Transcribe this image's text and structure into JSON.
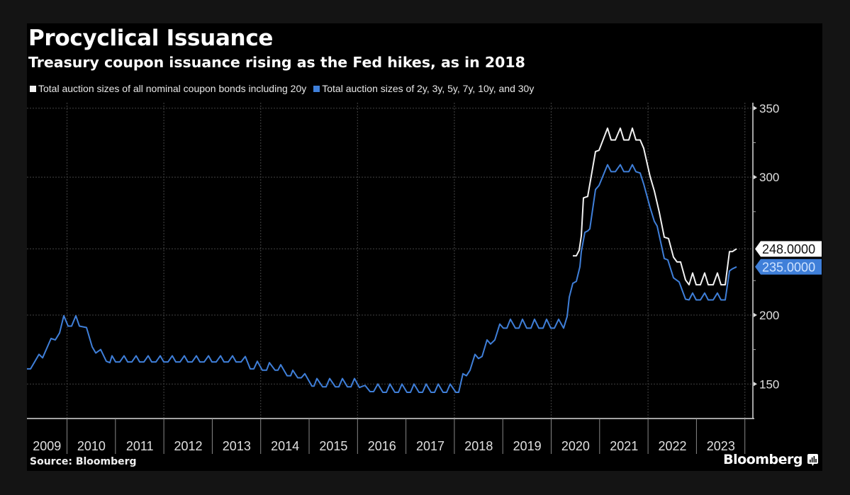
{
  "header": {
    "title": "Procyclical Issuance",
    "subtitle": "Treasury coupon issuance rising as the Fed hikes, as in 2018"
  },
  "footer": {
    "source": "Source: Bloomberg",
    "brand": "Bloomberg"
  },
  "icons": {
    "brand_logo": "bar-chart-speech-bubble-icon"
  },
  "colors": {
    "background": "#000000",
    "white_series": "#f2f2f2",
    "blue_series": "#3f7fd9",
    "grid": "#3a3a3a",
    "axis": "#d8d8d8"
  },
  "chart_data": {
    "type": "line",
    "title": "Procyclical Issuance",
    "subtitle": "Treasury coupon issuance rising as the Fed hikes, as in 2018",
    "xlabel": "",
    "ylabel": "",
    "xlim": [
      2009.165,
      2024.158
    ],
    "ylim": [
      125,
      354
    ],
    "y_axis_position": "right",
    "yticks": [
      150,
      200,
      300,
      350
    ],
    "yticks_minor": [
      175,
      225,
      275,
      325
    ],
    "ygrid_values": [
      150,
      200,
      248,
      300,
      350
    ],
    "x_tick_labels": [
      "2009",
      "2010",
      "2011",
      "2012",
      "2013",
      "2014",
      "2015",
      "2016",
      "2017",
      "2018",
      "2019",
      "2020",
      "2021",
      "2022",
      "2023"
    ],
    "x_dividers": [
      2010,
      2011,
      2012,
      2013,
      2014,
      2015,
      2016,
      2017,
      2018,
      2019,
      2020,
      2021,
      2022,
      2023,
      2024
    ],
    "xgrid_values": [
      2010,
      2012,
      2014,
      2016,
      2018,
      2020,
      2022,
      2024
    ],
    "grid": true,
    "legend_position": "top-left",
    "series": [
      {
        "name": "Total auction sizes of all nominal coupon bonds including 20y",
        "color": "#f2f2f2",
        "last_value_label": "248.0000",
        "points": [
          [
            2020.439,
            243
          ],
          [
            2020.512,
            243
          ],
          [
            2020.571,
            247
          ],
          [
            2020.615,
            257.5
          ],
          [
            2020.659,
            285
          ],
          [
            2020.747,
            286
          ],
          [
            2020.908,
            318.5
          ],
          [
            2020.981,
            319.5
          ],
          [
            2021.157,
            335.5
          ],
          [
            2021.23,
            327
          ],
          [
            2021.318,
            327
          ],
          [
            2021.42,
            335.5
          ],
          [
            2021.493,
            327
          ],
          [
            2021.596,
            327
          ],
          [
            2021.669,
            335.5
          ],
          [
            2021.742,
            327
          ],
          [
            2021.83,
            327
          ],
          [
            2021.903,
            321
          ],
          [
            2022.035,
            300.5
          ],
          [
            2022.123,
            290
          ],
          [
            2022.225,
            274.5
          ],
          [
            2022.328,
            256.5
          ],
          [
            2022.416,
            255.5
          ],
          [
            2022.518,
            242
          ],
          [
            2022.591,
            238.5
          ],
          [
            2022.665,
            238.5
          ],
          [
            2022.767,
            225.5
          ],
          [
            2022.84,
            222
          ],
          [
            2022.914,
            230.5
          ],
          [
            2022.987,
            222
          ],
          [
            2023.075,
            222
          ],
          [
            2023.163,
            230.5
          ],
          [
            2023.236,
            222
          ],
          [
            2023.338,
            222
          ],
          [
            2023.426,
            230.5
          ],
          [
            2023.499,
            222
          ],
          [
            2023.587,
            222
          ],
          [
            2023.675,
            246
          ],
          [
            2023.733,
            246
          ],
          [
            2023.821,
            248
          ]
        ]
      },
      {
        "name": "Total auction sizes of 2y, 3y, 5y, 7y, 10y, and 30y",
        "color": "#3f7fd9",
        "last_value_label": "235.0000",
        "points": [
          [
            2009.165,
            161
          ],
          [
            2009.239,
            161
          ],
          [
            2009.414,
            171.5
          ],
          [
            2009.488,
            169
          ],
          [
            2009.663,
            183
          ],
          [
            2009.751,
            182
          ],
          [
            2009.839,
            187
          ],
          [
            2009.927,
            199.5
          ],
          [
            2010.015,
            192
          ],
          [
            2010.088,
            192
          ],
          [
            2010.176,
            199.5
          ],
          [
            2010.249,
            192
          ],
          [
            2010.395,
            191
          ],
          [
            2010.512,
            177
          ],
          [
            2010.586,
            172.5
          ],
          [
            2010.688,
            175
          ],
          [
            2010.805,
            166.5
          ],
          [
            2010.878,
            165.5
          ],
          [
            2010.922,
            170.5
          ],
          [
            2010.996,
            166
          ],
          [
            2011.083,
            166
          ],
          [
            2011.171,
            170.5
          ],
          [
            2011.245,
            166
          ],
          [
            2011.332,
            166
          ],
          [
            2011.42,
            170.5
          ],
          [
            2011.493,
            166
          ],
          [
            2011.581,
            166
          ],
          [
            2011.669,
            170.5
          ],
          [
            2011.742,
            166
          ],
          [
            2011.83,
            166
          ],
          [
            2011.918,
            170.5
          ],
          [
            2011.991,
            166
          ],
          [
            2012.079,
            166
          ],
          [
            2012.167,
            170.5
          ],
          [
            2012.24,
            166
          ],
          [
            2012.328,
            166
          ],
          [
            2012.416,
            170.5
          ],
          [
            2012.489,
            166
          ],
          [
            2012.577,
            166
          ],
          [
            2012.665,
            170.5
          ],
          [
            2012.738,
            166
          ],
          [
            2012.826,
            166
          ],
          [
            2012.914,
            170.5
          ],
          [
            2012.987,
            166
          ],
          [
            2013.075,
            166
          ],
          [
            2013.163,
            170.5
          ],
          [
            2013.236,
            166
          ],
          [
            2013.324,
            166
          ],
          [
            2013.411,
            170.5
          ],
          [
            2013.485,
            166
          ],
          [
            2013.587,
            166
          ],
          [
            2013.675,
            170
          ],
          [
            2013.777,
            161
          ],
          [
            2013.851,
            161
          ],
          [
            2013.924,
            166.5
          ],
          [
            2014.026,
            160
          ],
          [
            2014.114,
            160
          ],
          [
            2014.173,
            165.5
          ],
          [
            2014.29,
            160
          ],
          [
            2014.348,
            160
          ],
          [
            2014.407,
            164
          ],
          [
            2014.539,
            156
          ],
          [
            2014.612,
            156
          ],
          [
            2014.656,
            160
          ],
          [
            2014.758,
            154.5
          ],
          [
            2014.832,
            154.5
          ],
          [
            2014.905,
            157.5
          ],
          [
            2015.051,
            148.5
          ],
          [
            2015.095,
            148.5
          ],
          [
            2015.154,
            154
          ],
          [
            2015.271,
            148
          ],
          [
            2015.344,
            148
          ],
          [
            2015.417,
            154
          ],
          [
            2015.534,
            148
          ],
          [
            2015.608,
            148
          ],
          [
            2015.681,
            154
          ],
          [
            2015.783,
            148
          ],
          [
            2015.857,
            148
          ],
          [
            2015.93,
            154
          ],
          [
            2016.032,
            147.5
          ],
          [
            2016.105,
            148.5
          ],
          [
            2016.149,
            149
          ],
          [
            2016.252,
            144.5
          ],
          [
            2016.325,
            144.5
          ],
          [
            2016.413,
            150
          ],
          [
            2016.515,
            144
          ],
          [
            2016.589,
            144
          ],
          [
            2016.662,
            150
          ],
          [
            2016.764,
            144
          ],
          [
            2016.837,
            144
          ],
          [
            2016.911,
            150
          ],
          [
            2017.013,
            144
          ],
          [
            2017.086,
            144
          ],
          [
            2017.16,
            150
          ],
          [
            2017.262,
            144
          ],
          [
            2017.335,
            144
          ],
          [
            2017.409,
            150
          ],
          [
            2017.511,
            144
          ],
          [
            2017.584,
            144
          ],
          [
            2017.658,
            150
          ],
          [
            2017.76,
            144
          ],
          [
            2017.833,
            144
          ],
          [
            2017.906,
            150
          ],
          [
            2018.023,
            144
          ],
          [
            2018.082,
            144
          ],
          [
            2018.17,
            157.5
          ],
          [
            2018.243,
            156
          ],
          [
            2018.316,
            160
          ],
          [
            2018.419,
            171.5
          ],
          [
            2018.492,
            168.5
          ],
          [
            2018.565,
            170
          ],
          [
            2018.668,
            182
          ],
          [
            2018.741,
            179
          ],
          [
            2018.829,
            182
          ],
          [
            2018.931,
            193.5
          ],
          [
            2019.004,
            190.5
          ],
          [
            2019.078,
            190.5
          ],
          [
            2019.151,
            197
          ],
          [
            2019.253,
            190.5
          ],
          [
            2019.327,
            190.5
          ],
          [
            2019.4,
            197
          ],
          [
            2019.488,
            190.5
          ],
          [
            2019.575,
            190.5
          ],
          [
            2019.649,
            197
          ],
          [
            2019.737,
            190.5
          ],
          [
            2019.824,
            190.5
          ],
          [
            2019.898,
            197
          ],
          [
            2019.985,
            190.5
          ],
          [
            2020.059,
            190.5
          ],
          [
            2020.146,
            197
          ],
          [
            2020.249,
            190.5
          ],
          [
            2020.322,
            199
          ],
          [
            2020.366,
            213
          ],
          [
            2020.439,
            223
          ],
          [
            2020.512,
            224.5
          ],
          [
            2020.586,
            235
          ],
          [
            2020.615,
            246
          ],
          [
            2020.688,
            260
          ],
          [
            2020.747,
            261
          ],
          [
            2020.791,
            262.5
          ],
          [
            2020.908,
            291
          ],
          [
            2020.981,
            294
          ],
          [
            2021.157,
            309
          ],
          [
            2021.23,
            304
          ],
          [
            2021.318,
            304
          ],
          [
            2021.42,
            309
          ],
          [
            2021.493,
            304
          ],
          [
            2021.596,
            304
          ],
          [
            2021.669,
            309
          ],
          [
            2021.742,
            304
          ],
          [
            2021.83,
            303
          ],
          [
            2021.903,
            295
          ],
          [
            2022.035,
            278
          ],
          [
            2022.123,
            268
          ],
          [
            2022.182,
            264.5
          ],
          [
            2022.269,
            250.5
          ],
          [
            2022.328,
            241
          ],
          [
            2022.401,
            240
          ],
          [
            2022.518,
            227
          ],
          [
            2022.635,
            224
          ],
          [
            2022.767,
            211.5
          ],
          [
            2022.84,
            211
          ],
          [
            2022.914,
            216
          ],
          [
            2022.987,
            211
          ],
          [
            2023.075,
            211
          ],
          [
            2023.163,
            216
          ],
          [
            2023.236,
            211
          ],
          [
            2023.338,
            211
          ],
          [
            2023.426,
            216
          ],
          [
            2023.499,
            211
          ],
          [
            2023.587,
            211
          ],
          [
            2023.675,
            232
          ],
          [
            2023.733,
            233.5
          ],
          [
            2023.821,
            235
          ]
        ]
      }
    ]
  }
}
